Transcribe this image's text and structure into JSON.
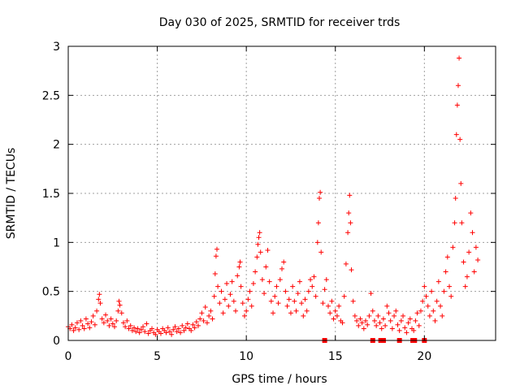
{
  "chart_data": {
    "type": "scatter",
    "title": "Day 030 of 2025, SRMTID for receiver trds",
    "xlabel": "GPS time / hours",
    "ylabel": "SRMTID / TECUs",
    "xlim": [
      0,
      24
    ],
    "ylim": [
      0,
      3
    ],
    "xticks": [
      0,
      5,
      10,
      15,
      20
    ],
    "xtick_labels": [
      "0",
      "5",
      "10",
      "15",
      "20"
    ],
    "yticks": [
      0,
      0.5,
      1,
      1.5,
      2,
      2.5,
      3
    ],
    "ytick_labels": [
      "0",
      "0.5",
      "1",
      "1.5",
      "2",
      "2.5",
      "3"
    ],
    "grid": true,
    "marker_color": "#ff0000",
    "series": [
      {
        "name": "SRMTID",
        "marker": "plus",
        "points": [
          [
            0.0,
            0.14
          ],
          [
            0.1,
            0.12
          ],
          [
            0.2,
            0.16
          ],
          [
            0.3,
            0.1
          ],
          [
            0.4,
            0.13
          ],
          [
            0.5,
            0.18
          ],
          [
            0.6,
            0.11
          ],
          [
            0.7,
            0.2
          ],
          [
            0.8,
            0.15
          ],
          [
            0.9,
            0.12
          ],
          [
            1.0,
            0.22
          ],
          [
            1.1,
            0.17
          ],
          [
            1.2,
            0.13
          ],
          [
            1.3,
            0.19
          ],
          [
            1.4,
            0.25
          ],
          [
            1.5,
            0.16
          ],
          [
            1.6,
            0.3
          ],
          [
            1.7,
            0.42
          ],
          [
            1.75,
            0.47
          ],
          [
            1.8,
            0.38
          ],
          [
            1.9,
            0.22
          ],
          [
            2.0,
            0.18
          ],
          [
            2.1,
            0.26
          ],
          [
            2.2,
            0.2
          ],
          [
            2.3,
            0.15
          ],
          [
            2.4,
            0.22
          ],
          [
            2.5,
            0.17
          ],
          [
            2.6,
            0.14
          ],
          [
            2.7,
            0.2
          ],
          [
            2.8,
            0.3
          ],
          [
            2.85,
            0.4
          ],
          [
            2.9,
            0.36
          ],
          [
            3.0,
            0.28
          ],
          [
            3.1,
            0.18
          ],
          [
            3.2,
            0.14
          ],
          [
            3.3,
            0.2
          ],
          [
            3.4,
            0.12
          ],
          [
            3.5,
            0.15
          ],
          [
            3.6,
            0.1
          ],
          [
            3.7,
            0.13
          ],
          [
            3.8,
            0.09
          ],
          [
            3.9,
            0.12
          ],
          [
            4.0,
            0.08
          ],
          [
            4.1,
            0.11
          ],
          [
            4.2,
            0.14
          ],
          [
            4.3,
            0.09
          ],
          [
            4.4,
            0.17
          ],
          [
            4.5,
            0.07
          ],
          [
            4.6,
            0.1
          ],
          [
            4.7,
            0.12
          ],
          [
            4.8,
            0.08
          ],
          [
            4.9,
            0.06
          ],
          [
            5.0,
            0.11
          ],
          [
            5.1,
            0.09
          ],
          [
            5.2,
            0.07
          ],
          [
            5.3,
            0.12
          ],
          [
            5.4,
            0.1
          ],
          [
            5.5,
            0.08
          ],
          [
            5.6,
            0.13
          ],
          [
            5.7,
            0.09
          ],
          [
            5.8,
            0.06
          ],
          [
            5.9,
            0.11
          ],
          [
            6.0,
            0.14
          ],
          [
            6.1,
            0.09
          ],
          [
            6.2,
            0.12
          ],
          [
            6.3,
            0.08
          ],
          [
            6.4,
            0.15
          ],
          [
            6.5,
            0.1
          ],
          [
            6.6,
            0.13
          ],
          [
            6.7,
            0.17
          ],
          [
            6.8,
            0.12
          ],
          [
            6.9,
            0.1
          ],
          [
            7.0,
            0.16
          ],
          [
            7.1,
            0.13
          ],
          [
            7.2,
            0.19
          ],
          [
            7.3,
            0.15
          ],
          [
            7.4,
            0.22
          ],
          [
            7.5,
            0.28
          ],
          [
            7.6,
            0.2
          ],
          [
            7.7,
            0.34
          ],
          [
            7.8,
            0.18
          ],
          [
            7.9,
            0.25
          ],
          [
            8.0,
            0.3
          ],
          [
            8.1,
            0.22
          ],
          [
            8.2,
            0.45
          ],
          [
            8.25,
            0.68
          ],
          [
            8.3,
            0.86
          ],
          [
            8.35,
            0.93
          ],
          [
            8.4,
            0.55
          ],
          [
            8.5,
            0.38
          ],
          [
            8.6,
            0.5
          ],
          [
            8.7,
            0.28
          ],
          [
            8.8,
            0.42
          ],
          [
            8.9,
            0.58
          ],
          [
            9.0,
            0.35
          ],
          [
            9.1,
            0.47
          ],
          [
            9.2,
            0.6
          ],
          [
            9.3,
            0.4
          ],
          [
            9.4,
            0.3
          ],
          [
            9.5,
            0.66
          ],
          [
            9.6,
            0.75
          ],
          [
            9.65,
            0.8
          ],
          [
            9.7,
            0.55
          ],
          [
            9.8,
            0.38
          ],
          [
            9.9,
            0.25
          ],
          [
            10.0,
            0.3
          ],
          [
            10.1,
            0.42
          ],
          [
            10.2,
            0.5
          ],
          [
            10.3,
            0.35
          ],
          [
            10.4,
            0.58
          ],
          [
            10.5,
            0.7
          ],
          [
            10.6,
            0.85
          ],
          [
            10.65,
            0.98
          ],
          [
            10.7,
            1.05
          ],
          [
            10.75,
            1.1
          ],
          [
            10.8,
            0.9
          ],
          [
            10.9,
            0.62
          ],
          [
            11.0,
            0.48
          ],
          [
            11.1,
            0.75
          ],
          [
            11.2,
            0.92
          ],
          [
            11.3,
            0.6
          ],
          [
            11.4,
            0.4
          ],
          [
            11.5,
            0.28
          ],
          [
            11.6,
            0.45
          ],
          [
            11.7,
            0.55
          ],
          [
            11.8,
            0.38
          ],
          [
            11.9,
            0.62
          ],
          [
            12.0,
            0.73
          ],
          [
            12.1,
            0.8
          ],
          [
            12.2,
            0.5
          ],
          [
            12.3,
            0.35
          ],
          [
            12.4,
            0.42
          ],
          [
            12.5,
            0.28
          ],
          [
            12.6,
            0.55
          ],
          [
            12.7,
            0.4
          ],
          [
            12.8,
            0.3
          ],
          [
            12.9,
            0.48
          ],
          [
            13.0,
            0.6
          ],
          [
            13.1,
            0.38
          ],
          [
            13.2,
            0.25
          ],
          [
            13.3,
            0.42
          ],
          [
            13.4,
            0.3
          ],
          [
            13.5,
            0.5
          ],
          [
            13.6,
            0.62
          ],
          [
            13.7,
            0.55
          ],
          [
            13.8,
            0.65
          ],
          [
            13.9,
            0.45
          ],
          [
            14.0,
            1.0
          ],
          [
            14.05,
            1.2
          ],
          [
            14.1,
            1.45
          ],
          [
            14.15,
            1.51
          ],
          [
            14.2,
            0.9
          ],
          [
            14.3,
            0.38
          ],
          [
            14.4,
            0.52
          ],
          [
            14.5,
            0.62
          ],
          [
            14.6,
            0.35
          ],
          [
            14.7,
            0.28
          ],
          [
            14.8,
            0.4
          ],
          [
            14.9,
            0.22
          ],
          [
            15.0,
            0.3
          ],
          [
            15.1,
            0.25
          ],
          [
            15.2,
            0.35
          ],
          [
            15.3,
            0.2
          ],
          [
            15.4,
            0.18
          ],
          [
            15.5,
            0.45
          ],
          [
            15.6,
            0.78
          ],
          [
            15.7,
            1.1
          ],
          [
            15.75,
            1.3
          ],
          [
            15.8,
            1.48
          ],
          [
            15.85,
            1.2
          ],
          [
            15.9,
            0.72
          ],
          [
            16.0,
            0.4
          ],
          [
            16.1,
            0.25
          ],
          [
            16.2,
            0.2
          ],
          [
            16.3,
            0.15
          ],
          [
            16.4,
            0.22
          ],
          [
            16.5,
            0.18
          ],
          [
            16.6,
            0.12
          ],
          [
            16.7,
            0.2
          ],
          [
            16.8,
            0.16
          ],
          [
            16.9,
            0.25
          ],
          [
            17.0,
            0.48
          ],
          [
            17.1,
            0.3
          ],
          [
            17.2,
            0.2
          ],
          [
            17.3,
            0.15
          ],
          [
            17.4,
            0.25
          ],
          [
            17.5,
            0.18
          ],
          [
            17.6,
            0.12
          ],
          [
            17.7,
            0.22
          ],
          [
            17.8,
            0.15
          ],
          [
            17.9,
            0.35
          ],
          [
            18.0,
            0.28
          ],
          [
            18.1,
            0.2
          ],
          [
            18.2,
            0.12
          ],
          [
            18.3,
            0.25
          ],
          [
            18.4,
            0.3
          ],
          [
            18.5,
            0.16
          ],
          [
            18.6,
            0.1
          ],
          [
            18.7,
            0.2
          ],
          [
            18.8,
            0.25
          ],
          [
            18.9,
            0.13
          ],
          [
            19.0,
            0.08
          ],
          [
            19.1,
            0.18
          ],
          [
            19.2,
            0.22
          ],
          [
            19.3,
            0.12
          ],
          [
            19.4,
            0.1
          ],
          [
            19.5,
            0.2
          ],
          [
            19.6,
            0.28
          ],
          [
            19.7,
            0.15
          ],
          [
            19.8,
            0.3
          ],
          [
            19.9,
            0.4
          ],
          [
            20.0,
            0.55
          ],
          [
            20.1,
            0.45
          ],
          [
            20.2,
            0.35
          ],
          [
            20.3,
            0.25
          ],
          [
            20.4,
            0.5
          ],
          [
            20.5,
            0.3
          ],
          [
            20.6,
            0.2
          ],
          [
            20.7,
            0.4
          ],
          [
            20.8,
            0.6
          ],
          [
            20.9,
            0.35
          ],
          [
            21.0,
            0.25
          ],
          [
            21.1,
            0.5
          ],
          [
            21.2,
            0.7
          ],
          [
            21.3,
            0.85
          ],
          [
            21.4,
            0.55
          ],
          [
            21.5,
            0.45
          ],
          [
            21.6,
            0.95
          ],
          [
            21.7,
            1.2
          ],
          [
            21.75,
            1.45
          ],
          [
            21.8,
            2.1
          ],
          [
            21.85,
            2.4
          ],
          [
            21.9,
            2.6
          ],
          [
            21.95,
            2.88
          ],
          [
            22.0,
            2.05
          ],
          [
            22.05,
            1.6
          ],
          [
            22.1,
            1.2
          ],
          [
            22.2,
            0.8
          ],
          [
            22.3,
            0.55
          ],
          [
            22.4,
            0.65
          ],
          [
            22.5,
            0.9
          ],
          [
            22.6,
            1.3
          ],
          [
            22.7,
            1.1
          ],
          [
            22.8,
            0.7
          ],
          [
            22.9,
            0.95
          ],
          [
            23.0,
            0.82
          ]
        ]
      },
      {
        "name": "gaps",
        "marker": "square",
        "points": [
          [
            14.4,
            0.0
          ],
          [
            17.1,
            0.0
          ],
          [
            17.55,
            0.0
          ],
          [
            17.7,
            0.0
          ],
          [
            18.6,
            0.0
          ],
          [
            19.35,
            0.0
          ],
          [
            19.45,
            0.0
          ],
          [
            20.0,
            0.0
          ]
        ]
      }
    ]
  }
}
